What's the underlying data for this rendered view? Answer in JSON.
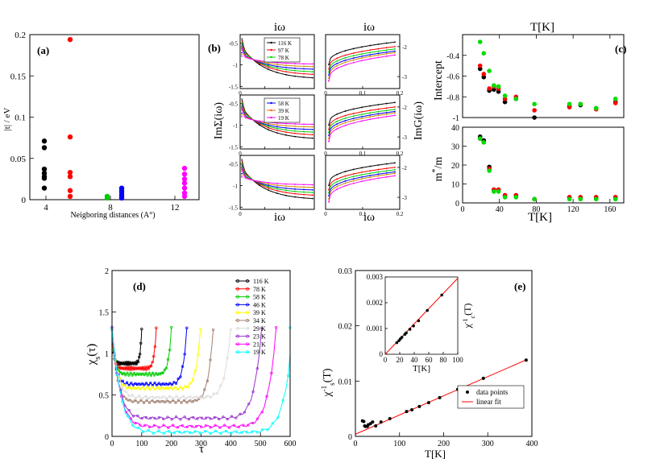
{
  "chart_data": [
    {
      "type": "scatter",
      "panel": "(a)",
      "xlabel": "Neigboring distances (A°)",
      "ylabel": "|t| / eV",
      "xlim": [
        3,
        13.5
      ],
      "ylim": [
        0,
        0.2
      ],
      "xticks": [
        4,
        8,
        12
      ],
      "xtick_labels": [
        "4",
        "8",
        "12"
      ],
      "yticks": [
        0,
        0.05,
        0.1,
        0.15,
        0.2
      ],
      "ytick_labels": [
        "0",
        "0.05",
        "0.1",
        "0.15",
        "0.2"
      ],
      "series": [
        {
          "name": "black",
          "color": "#000000",
          "x": [
            3.9,
            3.9,
            3.9,
            3.9,
            3.9,
            3.9,
            3.9
          ],
          "y": [
            0.071,
            0.063,
            0.037,
            0.032,
            0.028,
            0.026,
            0.014
          ]
        },
        {
          "name": "red",
          "color": "#ff0000",
          "x": [
            5.5,
            5.5,
            5.5,
            5.5,
            5.5,
            5.5
          ],
          "y": [
            0.194,
            0.076,
            0.033,
            0.028,
            0.011,
            0.004
          ]
        },
        {
          "name": "green",
          "color": "#00cc00",
          "x": [
            7.8,
            7.8
          ],
          "y": [
            0.004,
            0.002
          ]
        },
        {
          "name": "blue",
          "color": "#0000ff",
          "x": [
            8.7,
            8.7,
            8.7,
            8.7,
            8.7,
            8.7
          ],
          "y": [
            0.014,
            0.011,
            0.009,
            0.006,
            0.004,
            0.002
          ]
        },
        {
          "name": "magenta",
          "color": "#ff00ff",
          "x": [
            12.6,
            12.6,
            12.6,
            12.6,
            12.6,
            12.6,
            12.6
          ],
          "y": [
            0.038,
            0.031,
            0.025,
            0.02,
            0.014,
            0.008,
            0.004
          ]
        }
      ]
    },
    {
      "type": "line",
      "panel": "(b)",
      "top_label": "iω",
      "bottom_label": "iω",
      "left_ylabel": "ImΣ(iω)",
      "right_ylabel": "ImG(iω)",
      "left_yticks": [
        -0.5,
        -1,
        -1.5
      ],
      "left_ytick_labels": [
        "-0.5",
        "-1",
        "-1.5"
      ],
      "left_xtick_labels": [
        "0",
        "2",
        "4",
        "6"
      ],
      "right_xtick_labels": [
        "0",
        "0.1",
        "0.2"
      ],
      "right_ytick_labels": [
        "-2",
        "-3"
      ],
      "legends": [
        {
          "entries": [
            "116 K",
            "97 K",
            "78 K"
          ],
          "colors": [
            "#000000",
            "#ff0000",
            "#00cc00"
          ]
        },
        {
          "entries": [
            "58 K",
            "39 K",
            "19 K"
          ],
          "colors": [
            "#0000ff",
            "#ff6600",
            "#ff00ff"
          ]
        }
      ],
      "left_curves": {
        "colors": [
          "#000000",
          "#ff0000",
          "#00cc00",
          "#0000ff",
          "#cc8800",
          "#ff00ff"
        ],
        "start": [
          -0.58,
          -0.62,
          -0.66,
          -0.72,
          -0.76,
          -0.8
        ],
        "end": [
          -1.3,
          -1.22,
          -1.16,
          -1.1,
          -1.04,
          -0.98
        ]
      },
      "right_curves": {
        "colors": [
          "#000000",
          "#ff0000",
          "#00cc00",
          "#0000ff",
          "#cc8800",
          "#ff00ff"
        ],
        "start": [
          -2.6,
          -2.75,
          -2.85,
          -2.95,
          -3.05,
          -3.15
        ],
        "end": [
          -1.85,
          -2.0,
          -2.08,
          -2.15,
          -2.2,
          -2.28
        ]
      }
    },
    {
      "type": "scatter",
      "panel": "(c)",
      "title": "T[K]",
      "xlabel": "T[K]",
      "top": {
        "ylabel": "Intercept",
        "ylim": [
          -1,
          -0.2
        ],
        "yticks": [
          -1,
          -0.8,
          -0.6,
          -0.4
        ],
        "ytick_labels": [
          "-1",
          "-0.8",
          "-0.6",
          "-0.4"
        ],
        "x": [
          19,
          23,
          29,
          34,
          39,
          46,
          58,
          78,
          116,
          128,
          145,
          166
        ],
        "black": [
          -0.53,
          -0.61,
          -0.74,
          -0.73,
          -0.75,
          -0.85,
          -0.82,
          -1.0,
          -0.89,
          -0.88,
          -0.91,
          -0.85
        ],
        "red": [
          -0.5,
          -0.58,
          -0.72,
          -0.7,
          -0.72,
          -0.82,
          -0.8,
          -0.93,
          -0.9,
          -0.87,
          -0.92,
          -0.86
        ],
        "green": [
          -0.27,
          -0.38,
          -0.55,
          -0.69,
          -0.7,
          -0.79,
          -0.82,
          -0.87,
          -0.87,
          -0.87,
          -0.91,
          -0.82
        ]
      },
      "bottom": {
        "ylabel": "m*/m",
        "ylim": [
          0,
          40
        ],
        "yticks": [
          0,
          10,
          20,
          30,
          40
        ],
        "ytick_labels": [
          "0",
          "10",
          "20",
          "30",
          "40"
        ],
        "xticks": [
          0,
          40,
          80,
          120,
          160
        ],
        "xtick_labels": [
          "0",
          "40",
          "80",
          "120",
          "160"
        ],
        "x": [
          19,
          23,
          29,
          34,
          39,
          46,
          58,
          78,
          116,
          128,
          145,
          166
        ],
        "black": [
          35,
          33,
          19,
          7,
          7,
          4,
          4,
          2,
          3,
          3,
          3,
          3
        ],
        "red": [
          34,
          32,
          18,
          7,
          7,
          4,
          4,
          2,
          3,
          3,
          3,
          3
        ],
        "green": [
          34,
          32,
          17,
          6,
          6,
          3,
          3,
          2,
          2,
          2,
          2,
          2
        ]
      },
      "xlim": [
        0,
        175
      ]
    },
    {
      "type": "line",
      "panel": "(d)",
      "xlabel": "τ",
      "ylabel": "χ_s(τ)",
      "xlim": [
        0,
        600
      ],
      "ylim": [
        0,
        2
      ],
      "xticks": [
        0,
        100,
        200,
        300,
        400,
        500,
        600
      ],
      "xtick_labels": [
        "0",
        "100",
        "200",
        "300",
        "400",
        "500",
        "600"
      ],
      "yticks": [
        0,
        0.5,
        1,
        1.5,
        2
      ],
      "ytick_labels": [
        "0",
        "0.5",
        "1",
        "1.5",
        "2"
      ],
      "series": [
        {
          "name": "116 K",
          "color": "#000000",
          "beta": 100,
          "min": 0.88
        },
        {
          "name": "78 K",
          "color": "#ff0000",
          "beta": 149,
          "min": 0.82
        },
        {
          "name": "58 K",
          "color": "#00cc00",
          "beta": 200,
          "min": 0.75
        },
        {
          "name": "46 K",
          "color": "#0000ff",
          "beta": 252,
          "min": 0.63
        },
        {
          "name": "39 K",
          "color": "#ffff00",
          "beta": 298,
          "min": 0.58
        },
        {
          "name": "34 K",
          "color": "#a08070",
          "beta": 341,
          "min": 0.42
        },
        {
          "name": "29 K",
          "color": "#dddddd",
          "beta": 400,
          "min": 0.47
        },
        {
          "name": "23 K",
          "color": "#9933cc",
          "beta": 504,
          "min": 0.22
        },
        {
          "name": "21 K",
          "color": "#ff00ff",
          "beta": 553,
          "min": 0.12
        },
        {
          "name": "19 K",
          "color": "#00ffff",
          "beta": 611,
          "min": 0.05
        }
      ]
    },
    {
      "type": "scatter",
      "panel": "(e)",
      "xlabel": "T[K]",
      "ylabel": "χ_s^-1(T)",
      "xlim": [
        0,
        400
      ],
      "ylim": [
        0,
        0.03
      ],
      "xticks": [
        0,
        100,
        200,
        300,
        400
      ],
      "xtick_labels": [
        "0",
        "100",
        "200",
        "300",
        "400"
      ],
      "yticks": [
        0,
        0.01,
        0.02,
        0.03
      ],
      "ytick_labels": [
        "0",
        "0.01",
        "0.02",
        "0.03"
      ],
      "legend": [
        "data points",
        "linear fit"
      ],
      "fit": {
        "slope": 3.47e-05,
        "intercept": 0.0004
      },
      "points": {
        "x": [
          16,
          19,
          21,
          23,
          27,
          29,
          34,
          39,
          46,
          58,
          78,
          116,
          128,
          145,
          166,
          191,
          232,
          290,
          387
        ],
        "y": [
          0.0028,
          0.0027,
          0.0019,
          0.0018,
          0.0018,
          0.0021,
          0.0023,
          0.0026,
          0.0019,
          0.0026,
          0.0032,
          0.0045,
          0.0048,
          0.0054,
          0.0061,
          0.007,
          0.0085,
          0.0105,
          0.0138
        ]
      },
      "inset": {
        "xlabel": "T[K]",
        "ylabel": "χ_c^-1(T)",
        "xlim": [
          0,
          100
        ],
        "ylim": [
          0,
          0.003
        ],
        "xticks": [
          0,
          20,
          40,
          60,
          80,
          100
        ],
        "xtick_labels": [
          "0",
          "20",
          "40",
          "60",
          "80",
          "100"
        ],
        "yticks": [
          0,
          0.001,
          0.002,
          0.003
        ],
        "ytick_labels": [
          "0",
          "0.001",
          "0.002",
          "0.003"
        ],
        "x": [
          16,
          19,
          21,
          23,
          27,
          29,
          34,
          39,
          46,
          58,
          78
        ],
        "y": [
          0.00045,
          0.00053,
          0.0006,
          0.00066,
          0.00077,
          0.00083,
          0.00097,
          0.0011,
          0.0013,
          0.0017,
          0.0023
        ]
      }
    }
  ]
}
